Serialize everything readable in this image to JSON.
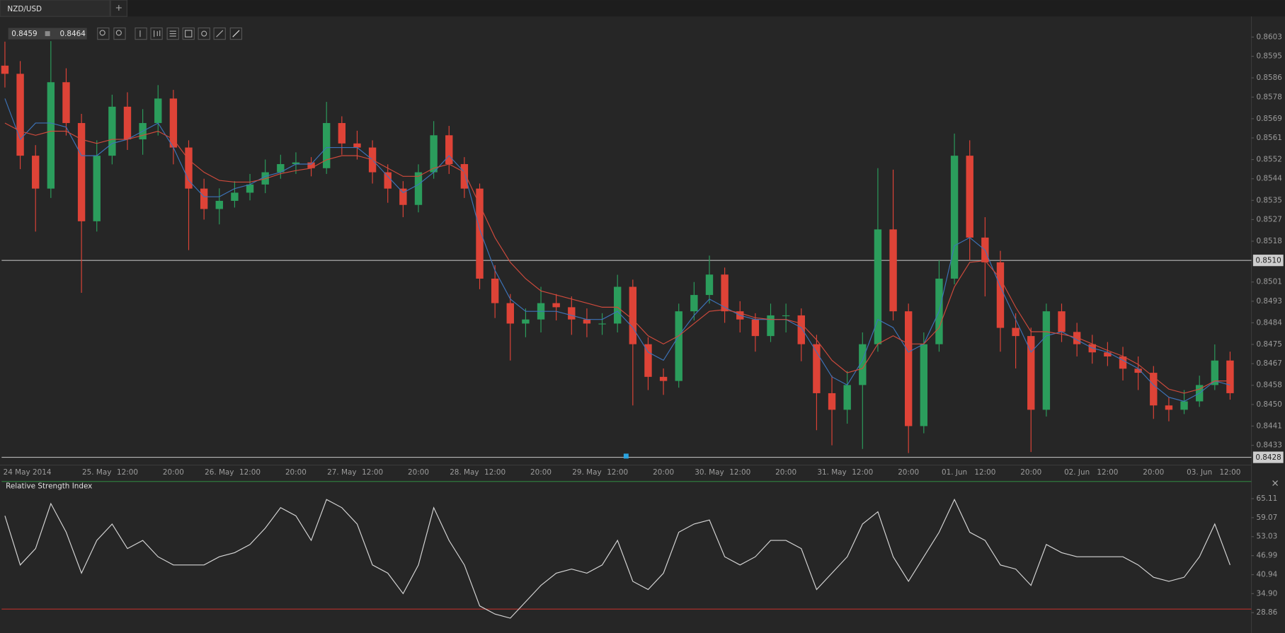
{
  "toolbar": {
    "tab": "NZD/USD",
    "new_tab": "+",
    "bid": "0.8459",
    "ask": "0.8464"
  },
  "chart_data": [
    {
      "type": "candlestick",
      "categories": [
        "24 May 2014",
        null,
        null,
        null,
        null,
        null,
        "25. May",
        null,
        "12:00",
        null,
        null,
        "20:00",
        null,
        null,
        "26. May",
        null,
        "12:00",
        null,
        null,
        "20:00",
        null,
        null,
        "27. May",
        null,
        "12:00",
        null,
        null,
        "20:00",
        null,
        null,
        "28. May",
        null,
        "12:00",
        null,
        null,
        "20:00",
        null,
        null,
        "29. May",
        null,
        "12:00",
        null,
        null,
        "20:00",
        null,
        null,
        "30. May",
        null,
        "12:00",
        null,
        null,
        "20:00",
        null,
        null,
        "31. May",
        null,
        "12:00",
        null,
        null,
        "20:00",
        null,
        null,
        "01. Jun",
        null,
        "12:00",
        null,
        null,
        "20:00",
        null,
        null,
        "02. Jun",
        null,
        "12:00",
        null,
        null,
        "20:00",
        null,
        null,
        "03. Jun",
        null,
        "12:00"
      ],
      "open": [
        0.85911,
        0.85877,
        0.85536,
        0.85399,
        0.85842,
        0.85672,
        0.85263,
        0.85536,
        0.8574,
        0.85604,
        0.85672,
        0.85774,
        0.8557,
        0.85399,
        0.85314,
        0.85348,
        0.85382,
        0.85416,
        0.85467,
        0.85501,
        0.85508,
        0.85484,
        0.85672,
        0.85587,
        0.8557,
        0.85467,
        0.85399,
        0.85331,
        0.85467,
        0.85621,
        0.85501,
        0.85399,
        0.85024,
        0.84922,
        0.84837,
        0.84854,
        0.84922,
        0.84905,
        0.84854,
        0.84837,
        0.84837,
        0.8499,
        0.84751,
        0.84615,
        0.84598,
        0.84888,
        0.84956,
        0.85041,
        0.84888,
        0.84854,
        0.84785,
        0.84871,
        0.84871,
        0.84751,
        0.84547,
        0.84478,
        0.84581,
        0.84751,
        0.85229,
        0.84888,
        0.8441,
        0.84751,
        0.85024,
        0.85536,
        0.85195,
        0.85092,
        0.84819,
        0.84785,
        0.84478,
        0.84888,
        0.84802,
        0.84751,
        0.84717,
        0.847,
        0.84649,
        0.84632,
        0.84496,
        0.84478,
        0.84513,
        0.84581,
        0.84683
      ],
      "high": [
        0.86011,
        0.8593,
        0.8558,
        0.86013,
        0.859,
        0.8571,
        0.856,
        0.8579,
        0.858,
        0.8573,
        0.8583,
        0.8581,
        0.856,
        0.8544,
        0.854,
        0.8543,
        0.8546,
        0.8552,
        0.8554,
        0.8555,
        0.8553,
        0.8576,
        0.857,
        0.8564,
        0.856,
        0.855,
        0.8543,
        0.855,
        0.8568,
        0.8566,
        0.8553,
        0.8542,
        0.8508,
        0.8496,
        0.849,
        0.8499,
        0.8496,
        0.8495,
        0.849,
        0.8488,
        0.8504,
        0.8502,
        0.8478,
        0.8465,
        0.8492,
        0.8501,
        0.8512,
        0.8507,
        0.8493,
        0.8488,
        0.8492,
        0.8492,
        0.849,
        0.8479,
        0.8462,
        0.8464,
        0.848,
        0.85484,
        0.85478,
        0.8492,
        0.848,
        0.851,
        0.85628,
        0.856,
        0.8528,
        0.8514,
        0.8488,
        0.8482,
        0.8492,
        0.8492,
        0.8484,
        0.8479,
        0.8476,
        0.8474,
        0.847,
        0.8466,
        0.8453,
        0.8456,
        0.8462,
        0.8475,
        0.8472
      ],
      "low": [
        0.8582,
        0.8548,
        0.8522,
        0.8536,
        0.8562,
        0.84965,
        0.8522,
        0.855,
        0.8556,
        0.8554,
        0.8562,
        0.855,
        0.85143,
        0.8527,
        0.8525,
        0.8532,
        0.8535,
        0.8538,
        0.8544,
        0.8546,
        0.8545,
        0.8546,
        0.8554,
        0.8552,
        0.8542,
        0.8534,
        0.8528,
        0.853,
        0.8544,
        0.8546,
        0.8536,
        0.8498,
        0.8486,
        0.84683,
        0.8478,
        0.848,
        0.8485,
        0.8479,
        0.8478,
        0.8479,
        0.848,
        0.84496,
        0.8456,
        0.8454,
        0.8457,
        0.8485,
        0.8492,
        0.8484,
        0.848,
        0.8472,
        0.8476,
        0.848,
        0.8468,
        0.84393,
        0.8433,
        0.8442,
        0.84315,
        0.8472,
        0.8485,
        0.84298,
        0.8438,
        0.8472,
        0.85,
        0.851,
        0.8495,
        0.8472,
        0.8465,
        0.84302,
        0.8445,
        0.8476,
        0.847,
        0.8467,
        0.8466,
        0.846,
        0.8456,
        0.8444,
        0.8443,
        0.8446,
        0.8449,
        0.8456,
        0.8452
      ],
      "close": [
        0.85877,
        0.85536,
        0.85399,
        0.85842,
        0.85672,
        0.85263,
        0.85536,
        0.8574,
        0.85604,
        0.85672,
        0.85774,
        0.8557,
        0.85399,
        0.85314,
        0.85348,
        0.85382,
        0.85416,
        0.85467,
        0.85501,
        0.85508,
        0.85484,
        0.85672,
        0.85587,
        0.8557,
        0.85467,
        0.85399,
        0.85331,
        0.85467,
        0.85621,
        0.85501,
        0.85399,
        0.85024,
        0.84922,
        0.84837,
        0.84854,
        0.84922,
        0.84905,
        0.84854,
        0.84837,
        0.84837,
        0.8499,
        0.84751,
        0.84615,
        0.84598,
        0.84888,
        0.84956,
        0.85041,
        0.84888,
        0.84854,
        0.84785,
        0.84871,
        0.84871,
        0.84751,
        0.84547,
        0.84478,
        0.84581,
        0.84751,
        0.85229,
        0.84888,
        0.8441,
        0.84751,
        0.85024,
        0.85536,
        0.85195,
        0.85092,
        0.84819,
        0.84785,
        0.84478,
        0.84888,
        0.84802,
        0.84751,
        0.84717,
        0.847,
        0.84649,
        0.84632,
        0.84496,
        0.84478,
        0.84513,
        0.84581,
        0.84683,
        0.84547
      ],
      "up_color": "#2b9d5c",
      "down_color": "#de4337",
      "series": [
        {
          "color": "#3d73b8",
          "values": [
            0.85774,
            0.85604,
            0.85672,
            0.85672,
            0.85655,
            0.85536,
            0.85536,
            0.85587,
            0.85604,
            0.85638,
            0.85672,
            0.8557,
            0.85433,
            0.85365,
            0.85365,
            0.85399,
            0.85416,
            0.8545,
            0.85467,
            0.85501,
            0.85501,
            0.8557,
            0.8557,
            0.8557,
            0.85519,
            0.8545,
            0.85382,
            0.85416,
            0.85467,
            0.85536,
            0.85467,
            0.85229,
            0.85058,
            0.84939,
            0.84888,
            0.84888,
            0.84888,
            0.84871,
            0.84854,
            0.84854,
            0.84888,
            0.8482,
            0.84718,
            0.84684,
            0.84786,
            0.84871,
            0.84939,
            0.84905,
            0.84871,
            0.84854,
            0.84854,
            0.84854,
            0.8482,
            0.84718,
            0.84615,
            0.84581,
            0.84684,
            0.84854,
            0.8482,
            0.84718,
            0.84752,
            0.84888,
            0.85161,
            0.85195,
            0.85143,
            0.8499,
            0.84854,
            0.84718,
            0.84786,
            0.84803,
            0.84769,
            0.84735,
            0.84718,
            0.84684,
            0.8465,
            0.84581,
            0.8453,
            0.84513,
            0.84547,
            0.84598,
            0.84581
          ]
        },
        {
          "color": "#cf4a3c",
          "values": [
            0.85672,
            0.85638,
            0.85621,
            0.85638,
            0.85638,
            0.85604,
            0.85587,
            0.85604,
            0.85604,
            0.85621,
            0.85638,
            0.85604,
            0.85519,
            0.85467,
            0.85433,
            0.85426,
            0.85426,
            0.8544,
            0.85461,
            0.85474,
            0.85484,
            0.85519,
            0.85536,
            0.85536,
            0.85519,
            0.85484,
            0.8545,
            0.8545,
            0.85484,
            0.85501,
            0.85467,
            0.85331,
            0.85195,
            0.85092,
            0.85024,
            0.84973,
            0.84956,
            0.84939,
            0.84922,
            0.84905,
            0.84905,
            0.84854,
            0.84786,
            0.84752,
            0.84786,
            0.84837,
            0.84888,
            0.84895,
            0.84881,
            0.84861,
            0.84854,
            0.84854,
            0.84837,
            0.84769,
            0.84684,
            0.84632,
            0.8465,
            0.84752,
            0.84786,
            0.84752,
            0.84752,
            0.8482,
            0.8499,
            0.85092,
            0.85099,
            0.85024,
            0.84905,
            0.84803,
            0.84803,
            0.84793,
            0.84779,
            0.84752,
            0.84725,
            0.84701,
            0.84667,
            0.84615,
            0.84564,
            0.84547,
            0.84564,
            0.84598,
            0.84598
          ]
        }
      ],
      "ylim": [
        0.84251,
        0.86109
      ],
      "yticks": [
        0.8603,
        0.8595,
        0.8586,
        0.8578,
        0.8569,
        0.8561,
        0.8552,
        0.8544,
        0.8535,
        0.8527,
        0.8518,
        0.8501,
        0.8493,
        0.8484,
        0.8475,
        0.8467,
        0.8458,
        {
          "value": 0.845,
          "label": "0.8450"
        },
        0.8441,
        0.8433
      ],
      "hlines": [
        {
          "value": 0.851,
          "label": "0.8510"
        },
        {
          "value": 0.8428,
          "label": "0.8428"
        }
      ],
      "hline_color": "#b8b8b8"
    },
    {
      "type": "line",
      "title": "Relative Strength Index",
      "series": [
        {
          "color": "#d6d6d6",
          "values": [
            59.64,
            44.02,
            49.23,
            63.54,
            54.43,
            41.42,
            51.83,
            57.04,
            49.23,
            51.83,
            46.63,
            44.02,
            44.02,
            44.02,
            46.63,
            47.93,
            50.53,
            55.73,
            62.24,
            59.64,
            51.83,
            64.85,
            62.24,
            57.04,
            44.02,
            41.42,
            34.91,
            44.02,
            62.24,
            51.83,
            44.02,
            31.01,
            28.41,
            27.11,
            32.31,
            37.52,
            41.42,
            42.72,
            41.42,
            44.02,
            51.83,
            38.82,
            36.21,
            41.42,
            54.43,
            57.04,
            58.34,
            46.63,
            44.02,
            46.63,
            51.83,
            51.83,
            49.23,
            36.21,
            41.42,
            46.63,
            57.04,
            60.94,
            46.63,
            38.82,
            46.63,
            54.43,
            64.85,
            54.43,
            51.83,
            44.02,
            42.72,
            37.52,
            50.53,
            47.93,
            46.63,
            46.63,
            46.63,
            46.63,
            44.02,
            40.12,
            38.82,
            40.12,
            46.63,
            57.04,
            44.02
          ]
        }
      ],
      "ylim": [
        23.2,
        67.97
      ],
      "yticks": [
        65.11,
        59.07,
        53.03,
        46.99,
        40.94,
        {
          "value": 34.9,
          "label": "34.90"
        },
        28.86
      ],
      "hlines": [
        30
      ],
      "hline_color": "#b8302b"
    }
  ]
}
